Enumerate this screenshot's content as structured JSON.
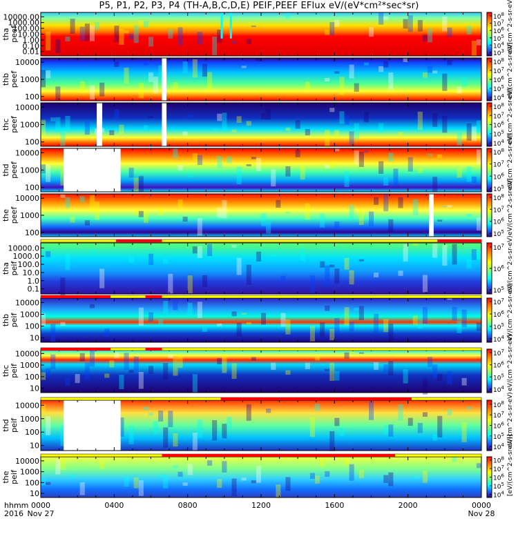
{
  "title": "P5, P1, P2, P3, P4 (TH-A,B,C,D,E) PEIF,PEEF EFlux eV/(eV*cm²*sec*sr)",
  "chart_data": {
    "type": "heatmap",
    "x_axis": {
      "ticks": [
        "0000",
        "0400",
        "0800",
        "1200",
        "1600",
        "2000",
        "0000"
      ],
      "left_labels": [
        "hhmm",
        "2016"
      ],
      "date_labels": [
        {
          "at": "0000",
          "text": "Nov 27"
        },
        {
          "at": "2400",
          "text": "Nov 28"
        }
      ],
      "range_hours": [
        0,
        24
      ]
    },
    "colorbar_label": "eV/(cm^2-s-sr-eV)",
    "colorbar_label_last": "[eV/(cm^2-s-sr-eV)]",
    "panels": [
      {
        "id": "tha-peef",
        "ylabel": [
          "tha",
          "peef"
        ],
        "yticks": [
          "10000.00",
          "1000.00",
          "100.00",
          "10.00",
          "1.00",
          "0.10",
          "0.01"
        ],
        "cbar_ticks": [
          "10^8",
          "10^7",
          "10^6",
          "10^5",
          "10^4",
          "10^3"
        ],
        "gaps": [],
        "spike_hours": [
          9.8,
          10.3
        ]
      },
      {
        "id": "thb-peef",
        "ylabel": [
          "thb",
          "peef"
        ],
        "yticks": [
          "10000",
          "1000",
          "100"
        ],
        "cbar_ticks": [
          "10^8",
          "10^7",
          "10^6",
          "10^5",
          "10^4"
        ],
        "gaps": [
          [
            6.6,
            6.85
          ]
        ]
      },
      {
        "id": "thc-peef",
        "ylabel": [
          "thc",
          "peef"
        ],
        "yticks": [
          "10000",
          "1000",
          "100"
        ],
        "cbar_ticks": [
          "10^8",
          "10^7",
          "10^6",
          "10^5",
          "10^4"
        ],
        "gaps": [
          [
            3.05,
            3.35
          ],
          [
            6.6,
            6.85
          ]
        ]
      },
      {
        "id": "thd-peef",
        "ylabel": [
          "thd",
          "peef"
        ],
        "yticks": [
          "10000",
          "1000",
          "100"
        ],
        "cbar_ticks": [
          "10^8",
          "10^7",
          "10^6",
          "10^5"
        ],
        "gaps": [
          [
            1.25,
            4.35
          ]
        ]
      },
      {
        "id": "the-peef",
        "ylabel": [
          "the",
          "peef"
        ],
        "yticks": [
          "10000",
          "1000",
          "100"
        ],
        "cbar_ticks": [
          "10^8",
          "10^7",
          "10^6",
          "10^5"
        ],
        "gaps": [
          [
            21.15,
            21.4
          ]
        ]
      },
      {
        "id": "tha-peif",
        "ylabel": [
          "tha",
          "peif"
        ],
        "yticks": [
          "10000.0",
          "1000.0",
          "100.0",
          "10.0",
          "1.0",
          "0.1"
        ],
        "cbar_ticks": [
          "10^7",
          "10^6",
          "10^5"
        ],
        "gaps": []
      },
      {
        "id": "thb-peif",
        "ylabel": [
          "thb",
          "peif"
        ],
        "yticks": [
          "10000",
          "1000",
          "100",
          "10"
        ],
        "cbar_ticks": [
          "10^7",
          "10^6",
          "10^5",
          "10^4"
        ],
        "gaps": []
      },
      {
        "id": "thc-peif",
        "ylabel": [
          "thc",
          "peif"
        ],
        "yticks": [
          "10000",
          "1000",
          "100",
          "10"
        ],
        "cbar_ticks": [
          "10^7",
          "10^6",
          "10^5",
          "10^4"
        ],
        "gaps": []
      },
      {
        "id": "thd-peif",
        "ylabel": [
          "thd",
          "peif"
        ],
        "yticks": [
          "10000",
          "1000",
          "100",
          "10"
        ],
        "cbar_ticks": [
          "10^8",
          "10^7",
          "10^6",
          "10^5",
          "10^4"
        ],
        "gaps": [
          [
            1.25,
            4.35
          ]
        ]
      },
      {
        "id": "the-peif",
        "ylabel": [
          "the",
          "peif"
        ],
        "yticks": [
          "10000",
          "1000",
          "100",
          "10"
        ],
        "cbar_ticks": [
          "10^8",
          "10^7",
          "10^6",
          "10^5",
          "10^4"
        ],
        "gaps": []
      }
    ],
    "mode_bars": [
      {
        "after_panel": "the-peef",
        "red_segments": [
          [
            4.1,
            6.6
          ],
          [
            21.6,
            24
          ]
        ]
      },
      {
        "after_panel": "tha-peif",
        "red_segments": [
          [
            0,
            3.8
          ],
          [
            5.7,
            6.6
          ]
        ]
      },
      {
        "after_panel": "thb-peif",
        "red_segments": [
          [
            0,
            3.8
          ],
          [
            5.7,
            6.6
          ]
        ]
      },
      {
        "after_panel": "thc-peif",
        "red_segments": [
          [
            9.8,
            20.2
          ]
        ]
      },
      {
        "after_panel": "thd-peif",
        "red_segments": [
          [
            6.6,
            19.3
          ]
        ]
      }
    ],
    "colors": {
      "red": "#ff0000",
      "yellow": "#ffff00",
      "gap": "#ffffff"
    }
  }
}
